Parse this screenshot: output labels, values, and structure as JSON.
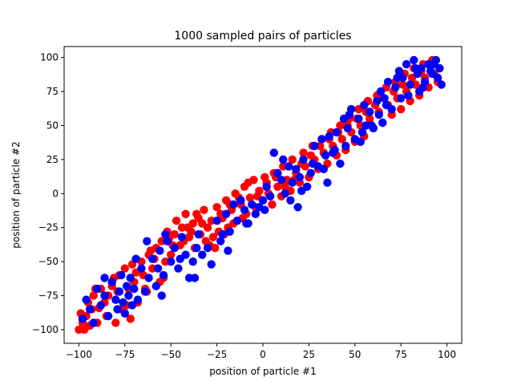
{
  "chart_data": {
    "type": "scatter",
    "title": "1000 sampled pairs of particles",
    "xlabel": "position of particle #1",
    "ylabel": "position of particle #2",
    "xlim": [
      -108,
      108
    ],
    "ylim": [
      -110,
      108
    ],
    "xticks": [
      -100,
      -75,
      -50,
      -25,
      0,
      25,
      50,
      75,
      100
    ],
    "yticks": [
      -100,
      -75,
      -50,
      -25,
      0,
      25,
      50,
      75,
      100
    ],
    "grid": false,
    "series_colors": {
      "red": "#ff0000",
      "blue": "#0000ff"
    },
    "series": [
      {
        "color": "#ff0000",
        "points": [
          [
            -100,
            -100
          ],
          [
            -98,
            -95
          ],
          [
            -97,
            -100
          ],
          [
            -96,
            -90
          ],
          [
            -95,
            -80
          ],
          [
            -93,
            -85
          ],
          [
            -92,
            -75
          ],
          [
            -90,
            -95
          ],
          [
            -88,
            -70
          ],
          [
            -86,
            -80
          ],
          [
            -85,
            -90
          ],
          [
            -84,
            -75
          ],
          [
            -82,
            -68
          ],
          [
            -80,
            -95
          ],
          [
            -78,
            -60
          ],
          [
            -77,
            -85
          ],
          [
            -75,
            -55
          ],
          [
            -73,
            -70
          ],
          [
            -72,
            -92
          ],
          [
            -70,
            -65
          ],
          [
            -68,
            -80
          ],
          [
            -66,
            -50
          ],
          [
            -65,
            -60
          ],
          [
            -63,
            -72
          ],
          [
            -62,
            -45
          ],
          [
            -60,
            -55
          ],
          [
            -58,
            -40
          ],
          [
            -56,
            -65
          ],
          [
            -55,
            -35
          ],
          [
            -53,
            -50
          ],
          [
            -52,
            -28
          ],
          [
            -50,
            -45
          ],
          [
            -48,
            -30
          ],
          [
            -47,
            -20
          ],
          [
            -45,
            -38
          ],
          [
            -44,
            -25
          ],
          [
            -42,
            -15
          ],
          [
            -40,
            -32
          ],
          [
            -38,
            -22
          ],
          [
            -37,
            -40
          ],
          [
            -35,
            -18
          ],
          [
            -34,
            -30
          ],
          [
            -32,
            -12
          ],
          [
            -30,
            -25
          ],
          [
            -29,
            -38
          ],
          [
            -28,
            -20
          ],
          [
            -27,
            -32
          ],
          [
            -25,
            -10
          ],
          [
            -24,
            -28
          ],
          [
            -22,
            -18
          ],
          [
            -20,
            -5
          ],
          [
            -19,
            -25
          ],
          [
            -17,
            -12
          ],
          [
            -15,
            0
          ],
          [
            -14,
            -20
          ],
          [
            -12,
            -8
          ],
          [
            -10,
            5
          ],
          [
            -9,
            -15
          ],
          [
            -7,
            -3
          ],
          [
            -5,
            10
          ],
          [
            -4,
            -10
          ],
          [
            -2,
            2
          ],
          [
            0,
            -5
          ],
          [
            1,
            12
          ],
          [
            3,
            0
          ],
          [
            5,
            -8
          ],
          [
            6,
            15
          ],
          [
            8,
            5
          ],
          [
            10,
            -2
          ],
          [
            11,
            20
          ],
          [
            13,
            10
          ],
          [
            15,
            2
          ],
          [
            16,
            25
          ],
          [
            18,
            15
          ],
          [
            20,
            8
          ],
          [
            22,
            30
          ],
          [
            23,
            20
          ],
          [
            25,
            12
          ],
          [
            27,
            35
          ],
          [
            28,
            25
          ],
          [
            30,
            18
          ],
          [
            32,
            40
          ],
          [
            33,
            30
          ],
          [
            35,
            22
          ],
          [
            37,
            45
          ],
          [
            38,
            35
          ],
          [
            40,
            28
          ],
          [
            42,
            50
          ],
          [
            43,
            40
          ],
          [
            45,
            32
          ],
          [
            47,
            55
          ],
          [
            48,
            45
          ],
          [
            50,
            38
          ],
          [
            52,
            62
          ],
          [
            53,
            50
          ],
          [
            55,
            42
          ],
          [
            57,
            68
          ],
          [
            58,
            55
          ],
          [
            60,
            48
          ],
          [
            62,
            72
          ],
          [
            63,
            60
          ],
          [
            65,
            52
          ],
          [
            67,
            78
          ],
          [
            68,
            65
          ],
          [
            70,
            58
          ],
          [
            72,
            82
          ],
          [
            73,
            70
          ],
          [
            75,
            62
          ],
          [
            77,
            88
          ],
          [
            78,
            75
          ],
          [
            80,
            68
          ],
          [
            82,
            92
          ],
          [
            83,
            80
          ],
          [
            85,
            72
          ],
          [
            87,
            95
          ],
          [
            88,
            85
          ],
          [
            90,
            78
          ],
          [
            92,
            98
          ],
          [
            93,
            88
          ],
          [
            95,
            82
          ],
          [
            -99,
            -88
          ],
          [
            -94,
            -97
          ],
          [
            -89,
            -84
          ],
          [
            -79,
            -72
          ],
          [
            -74,
            -82
          ],
          [
            -69,
            -58
          ],
          [
            -64,
            -70
          ],
          [
            -59,
            -48
          ],
          [
            -54,
            -62
          ],
          [
            -49,
            -38
          ],
          [
            -43,
            -35
          ],
          [
            -39,
            -28
          ],
          [
            -33,
            -22
          ],
          [
            -31,
            -35
          ],
          [
            -26,
            -40
          ],
          [
            -23,
            -15
          ],
          [
            -18,
            -8
          ],
          [
            -13,
            -3
          ],
          [
            -8,
            8
          ],
          [
            -3,
            -2
          ],
          [
            2,
            8
          ],
          [
            7,
            12
          ],
          [
            12,
            5
          ],
          [
            17,
            10
          ],
          [
            21,
            22
          ],
          [
            26,
            28
          ],
          [
            31,
            35
          ],
          [
            36,
            40
          ],
          [
            41,
            45
          ],
          [
            46,
            50
          ],
          [
            51,
            55
          ],
          [
            56,
            60
          ],
          [
            61,
            65
          ],
          [
            66,
            70
          ],
          [
            71,
            75
          ],
          [
            76,
            80
          ],
          [
            81,
            85
          ],
          [
            86,
            90
          ],
          [
            91,
            95
          ],
          [
            96,
            92
          ],
          [
            -91,
            -70
          ],
          [
            -81,
            -62
          ],
          [
            -71,
            -52
          ],
          [
            -61,
            -42
          ],
          [
            -51,
            -33
          ],
          [
            -41,
            -25
          ],
          [
            -36,
            -15
          ],
          [
            -21,
            -30
          ],
          [
            -16,
            -22
          ],
          [
            -11,
            -18
          ]
        ]
      },
      {
        "color": "#0000ff",
        "points": [
          [
            -98,
            -92
          ],
          [
            -96,
            -78
          ],
          [
            -94,
            -85
          ],
          [
            -92,
            -95
          ],
          [
            -90,
            -70
          ],
          [
            -88,
            -82
          ],
          [
            -86,
            -75
          ],
          [
            -84,
            -90
          ],
          [
            -82,
            -65
          ],
          [
            -80,
            -78
          ],
          [
            -79,
            -85
          ],
          [
            -78,
            -72
          ],
          [
            -77,
            -60
          ],
          [
            -76,
            -80
          ],
          [
            -75,
            -88
          ],
          [
            -74,
            -68
          ],
          [
            -73,
            -75
          ],
          [
            -72,
            -62
          ],
          [
            -71,
            -82
          ],
          [
            -70,
            -70
          ],
          [
            -68,
            -78
          ],
          [
            -66,
            -55
          ],
          [
            -64,
            -72
          ],
          [
            -62,
            -62
          ],
          [
            -60,
            -48
          ],
          [
            -58,
            -68
          ],
          [
            -57,
            -55
          ],
          [
            -56,
            -42
          ],
          [
            -55,
            -75
          ],
          [
            -54,
            -60
          ],
          [
            -52,
            -35
          ],
          [
            -50,
            -50
          ],
          [
            -48,
            -40
          ],
          [
            -46,
            -55
          ],
          [
            -44,
            -32
          ],
          [
            -42,
            -45
          ],
          [
            -40,
            -62
          ],
          [
            -38,
            -50
          ],
          [
            -36,
            -40
          ],
          [
            -35,
            -30
          ],
          [
            -33,
            -45
          ],
          [
            -30,
            -40
          ],
          [
            -28,
            -52
          ],
          [
            -25,
            -20
          ],
          [
            -23,
            -35
          ],
          [
            -20,
            -15
          ],
          [
            -18,
            -28
          ],
          [
            -16,
            -8
          ],
          [
            -14,
            -20
          ],
          [
            -12,
            -5
          ],
          [
            -10,
            -12
          ],
          [
            -8,
            -22
          ],
          [
            -6,
            -8
          ],
          [
            -4,
            -15
          ],
          [
            -2,
            -10
          ],
          [
            0,
            -5
          ],
          [
            2,
            5
          ],
          [
            4,
            -2
          ],
          [
            6,
            30
          ],
          [
            8,
            15
          ],
          [
            10,
            10
          ],
          [
            12,
            0
          ],
          [
            14,
            20
          ],
          [
            15,
            -5
          ],
          [
            16,
            8
          ],
          [
            18,
            18
          ],
          [
            19,
            -10
          ],
          [
            20,
            12
          ],
          [
            22,
            25
          ],
          [
            24,
            5
          ],
          [
            26,
            15
          ],
          [
            28,
            35
          ],
          [
            30,
            20
          ],
          [
            32,
            40
          ],
          [
            34,
            28
          ],
          [
            35,
            8
          ],
          [
            36,
            42
          ],
          [
            38,
            30
          ],
          [
            40,
            45
          ],
          [
            42,
            22
          ],
          [
            44,
            55
          ],
          [
            45,
            35
          ],
          [
            46,
            48
          ],
          [
            48,
            62
          ],
          [
            50,
            40
          ],
          [
            52,
            55
          ],
          [
            54,
            45
          ],
          [
            55,
            65
          ],
          [
            56,
            50
          ],
          [
            58,
            60
          ],
          [
            60,
            48
          ],
          [
            62,
            68
          ],
          [
            63,
            58
          ],
          [
            64,
            75
          ],
          [
            65,
            52
          ],
          [
            66,
            70
          ],
          [
            68,
            82
          ],
          [
            70,
            62
          ],
          [
            72,
            78
          ],
          [
            74,
            90
          ],
          [
            75,
            70
          ],
          [
            76,
            85
          ],
          [
            78,
            95
          ],
          [
            80,
            80
          ],
          [
            82,
            98
          ],
          [
            84,
            88
          ],
          [
            85,
            75
          ],
          [
            86,
            92
          ],
          [
            88,
            82
          ],
          [
            90,
            95
          ],
          [
            92,
            88
          ],
          [
            94,
            98
          ],
          [
            95,
            85
          ],
          [
            96,
            92
          ],
          [
            97,
            80
          ],
          [
            -86,
            -62
          ],
          [
            -69,
            -48
          ],
          [
            -63,
            -35
          ],
          [
            -53,
            -30
          ],
          [
            -45,
            -48
          ],
          [
            -37,
            -62
          ],
          [
            -22,
            -30
          ],
          [
            -19,
            -42
          ],
          [
            -9,
            -22
          ],
          [
            1,
            -12
          ],
          [
            11,
            25
          ],
          [
            21,
            2
          ],
          [
            27,
            22
          ],
          [
            33,
            18
          ],
          [
            39,
            32
          ],
          [
            47,
            58
          ],
          [
            53,
            38
          ],
          [
            59,
            50
          ],
          [
            67,
            65
          ],
          [
            73,
            85
          ],
          [
            79,
            72
          ],
          [
            83,
            92
          ],
          [
            87,
            78
          ],
          [
            91,
            90
          ],
          [
            93,
            95
          ]
        ]
      }
    ]
  }
}
